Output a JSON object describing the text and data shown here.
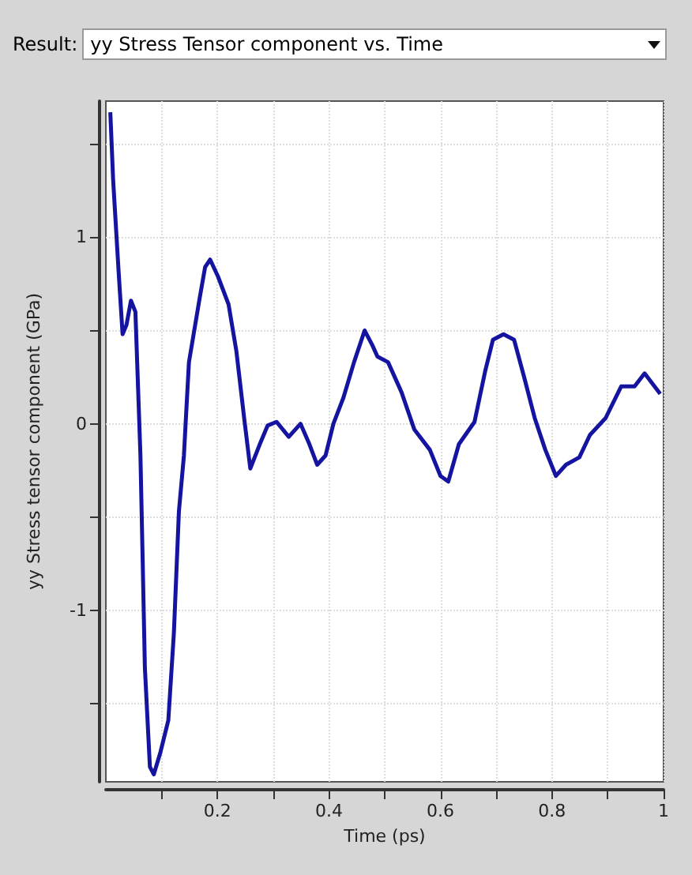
{
  "chart_data": {
    "type": "line",
    "title": "yy Stress Tensor component vs. Time",
    "xlabel": "Time (ps)",
    "ylabel": "yy Stress tensor component (GPa)",
    "annotations": [
      "Result:"
    ],
    "x": [
      0.008,
      0.013,
      0.023,
      0.03,
      0.037,
      0.045,
      0.053,
      0.062,
      0.066,
      0.07,
      0.079,
      0.086,
      0.098,
      0.112,
      0.122,
      0.131,
      0.14,
      0.143,
      0.149,
      0.168,
      0.178,
      0.187,
      0.201,
      0.22,
      0.234,
      0.248,
      0.259,
      0.276,
      0.29,
      0.306,
      0.328,
      0.349,
      0.365,
      0.379,
      0.394,
      0.408,
      0.426,
      0.445,
      0.464,
      0.478,
      0.487,
      0.506,
      0.53,
      0.553,
      0.581,
      0.6,
      0.614,
      0.633,
      0.661,
      0.68,
      0.694,
      0.713,
      0.732,
      0.75,
      0.769,
      0.788,
      0.807,
      0.825,
      0.849,
      0.868,
      0.896,
      0.924,
      0.948,
      0.966,
      0.994
    ],
    "series": [
      {
        "color": "#1414a0",
        "values": [
          1.67,
          1.31,
          0.81,
          0.48,
          0.53,
          0.66,
          0.6,
          -0.17,
          -0.73,
          -1.31,
          -1.84,
          -1.88,
          -1.76,
          -1.59,
          -1.12,
          -0.47,
          -0.17,
          0,
          0.33,
          0.67,
          0.84,
          0.88,
          0.79,
          0.64,
          0.39,
          0.03,
          -0.24,
          -0.11,
          -0.01,
          0.01,
          -0.07,
          0,
          -0.11,
          -0.22,
          -0.17,
          0,
          0.14,
          0.33,
          0.5,
          0.42,
          0.36,
          0.33,
          0.17,
          -0.03,
          -0.14,
          -0.28,
          -0.31,
          -0.11,
          0.01,
          0.28,
          0.45,
          0.48,
          0.45,
          0.25,
          0.03,
          -0.14,
          -0.28,
          -0.22,
          -0.18,
          -0.06,
          0.03,
          0.2,
          0.2,
          0.27,
          0.16
        ]
      }
    ],
    "xlim": [
      0,
      1
    ],
    "ylim": [
      -1.92,
      1.73
    ],
    "xticks": [
      {
        "value": 0.1,
        "label": null
      },
      0.2,
      {
        "value": 0.3,
        "label": null
      },
      0.4,
      {
        "value": 0.5,
        "label": null
      },
      0.6,
      {
        "value": 0.7,
        "label": null
      },
      0.8,
      {
        "value": 0.9,
        "label": null
      },
      1
    ],
    "yticks": [
      {
        "value": -1.5,
        "label": null
      },
      -1,
      {
        "value": -0.5,
        "label": null
      },
      0,
      {
        "value": 0.5,
        "label": null
      },
      1,
      {
        "value": 1.5,
        "label": null
      }
    ],
    "grid": true,
    "line_style": "solid"
  }
}
